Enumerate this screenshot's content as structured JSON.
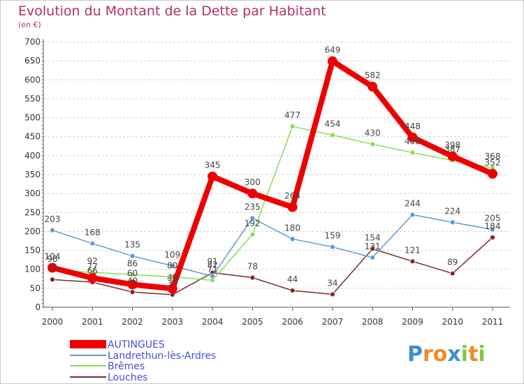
{
  "chart_data": {
    "type": "line",
    "title": "Evolution du Montant de la Dette par Habitant",
    "subtitle": "(en €)",
    "x": [
      "2000",
      "2001",
      "2002",
      "2003",
      "2004",
      "2005",
      "2006",
      "2007",
      "2008",
      "2009",
      "2010",
      "2011"
    ],
    "ylim": [
      0,
      700
    ],
    "yticks": [
      0,
      50,
      100,
      150,
      200,
      250,
      300,
      350,
      400,
      450,
      500,
      550,
      600,
      650,
      700
    ],
    "grid": "horizontal dashed",
    "legend_position": "bottom-left",
    "series": [
      {
        "name": "AUTINGUES",
        "color": "#ee0000",
        "values": [
          104,
          77,
          60,
          49,
          345,
          300,
          264,
          649,
          582,
          448,
          398,
          352
        ]
      },
      {
        "name": "Landrethun-lès-Ardres",
        "color": "#5b9bd5",
        "values": [
          203,
          168,
          135,
          109,
          82,
          235,
          180,
          159,
          131,
          244,
          224,
          205
        ]
      },
      {
        "name": "Brêmes",
        "color": "#88dd55",
        "values": [
          98,
          92,
          86,
          80,
          71,
          192,
          477,
          454,
          430,
          408,
          387,
          368
        ]
      },
      {
        "name": "Louches",
        "color": "#7a2a2a",
        "values": [
          73,
          66,
          40,
          33,
          91,
          78,
          44,
          34,
          154,
          121,
          89,
          184
        ]
      }
    ]
  },
  "logo": {
    "letters": [
      "P",
      "r",
      "o",
      "x",
      "i",
      "t",
      "i"
    ],
    "colors": [
      "#3a8fd8",
      "#f08a24",
      "#f08a24",
      "#3a8fd8",
      "#88c540",
      "#f08a24",
      "#88c540"
    ]
  }
}
